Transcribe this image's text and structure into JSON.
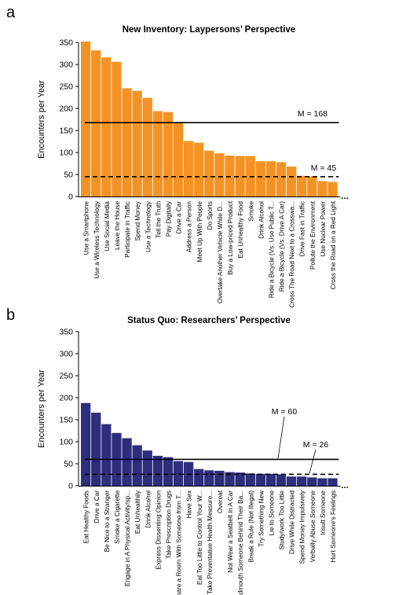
{
  "chart_data": [
    {
      "panel_label": "a",
      "type": "bar",
      "title": "New Inventory: Laypersons’ Perspective",
      "ylabel": "Encounters per Year",
      "xlabel": "",
      "ylim": [
        0,
        350
      ],
      "yticks": [
        0,
        50,
        100,
        150,
        200,
        250,
        300,
        350
      ],
      "bar_color": "#f39325",
      "ellipsis": "...",
      "categories": [
        "Use a Smartphone",
        "Use a Wireless Technology",
        "Use Social Media",
        "Leave the House",
        "Participate in Traffic",
        "Spend Money",
        "Use a Technology",
        "Tell the Truth",
        "Pay Digitally",
        "Drive a Car",
        "Address a Person",
        "Meet Up With People",
        "Do Sports",
        "Overtake Another Vehicle While D...",
        "Buy a Low-priced Product",
        "Eat Unhealthy Food",
        "Smoke",
        "Drink Alcohol",
        "Ride a Bicycle (Vs. Use Public T...",
        "Ride a Bicycle (Vs. Drive A Car)",
        "Cross The Road Next to a Crosswa...",
        "Drive Fast in Traffic",
        "Pollute the Environment",
        "Use Nuclear Power",
        "Cross the Road on a Red Light"
      ],
      "values": [
        352,
        332,
        316,
        306,
        246,
        240,
        224,
        194,
        192,
        168,
        126,
        122,
        104,
        98,
        93,
        92,
        92,
        80,
        80,
        78,
        68,
        47,
        46,
        35,
        33
      ],
      "reference_lines": [
        {
          "label": "M = 168",
          "value": 168,
          "style": "solid"
        },
        {
          "label": "M = 45",
          "value": 45,
          "style": "dashed"
        }
      ]
    },
    {
      "panel_label": "b",
      "type": "bar",
      "title": "Status Quo: Researchers’ Perspective",
      "ylabel": "Encounters per Year",
      "xlabel": "",
      "ylim": [
        0,
        350
      ],
      "yticks": [
        0,
        50,
        100,
        150,
        200,
        250,
        300,
        350
      ],
      "bar_color": "#2f2e7c",
      "ellipsis": "...",
      "categories": [
        "Eat Healthy Foods",
        "Drive a Car",
        "Be Nice to a Stranger",
        "Smoke a Cigarette",
        "Engage in A Physical Activity/sp...",
        "Eat Unhealthily",
        "Drink Alcohol",
        "Express Dissenting Opinion",
        "Take Prescription Drugs",
        "Share a Room With Someone from T...",
        "Have Sex",
        "Eat Too Little to Control Your W...",
        "Take Preventative Health Measure...",
        "Overeat",
        "Not Wear a Seatbelt in A Car",
        "Badmouth Someone Behind Their Ba...",
        "Break a Rule (Not Illegal)",
        "Try Something New",
        "Lie to Someone",
        "Study/work Too Little",
        "Drive While Distracted",
        "Spend Money Impulsively",
        "Verbally Abuse Someone",
        "Insult Someone",
        "Hurt Someone's Feelings"
      ],
      "values": [
        188,
        166,
        140,
        120,
        108,
        92,
        80,
        68,
        65,
        56,
        54,
        38,
        35,
        34,
        31,
        30,
        28,
        27,
        27,
        26,
        21,
        21,
        19,
        17,
        17
      ],
      "reference_lines": [
        {
          "label": "M = 60",
          "value": 60,
          "style": "solid"
        },
        {
          "label": "M = 26",
          "value": 26,
          "style": "dashed"
        }
      ]
    }
  ]
}
